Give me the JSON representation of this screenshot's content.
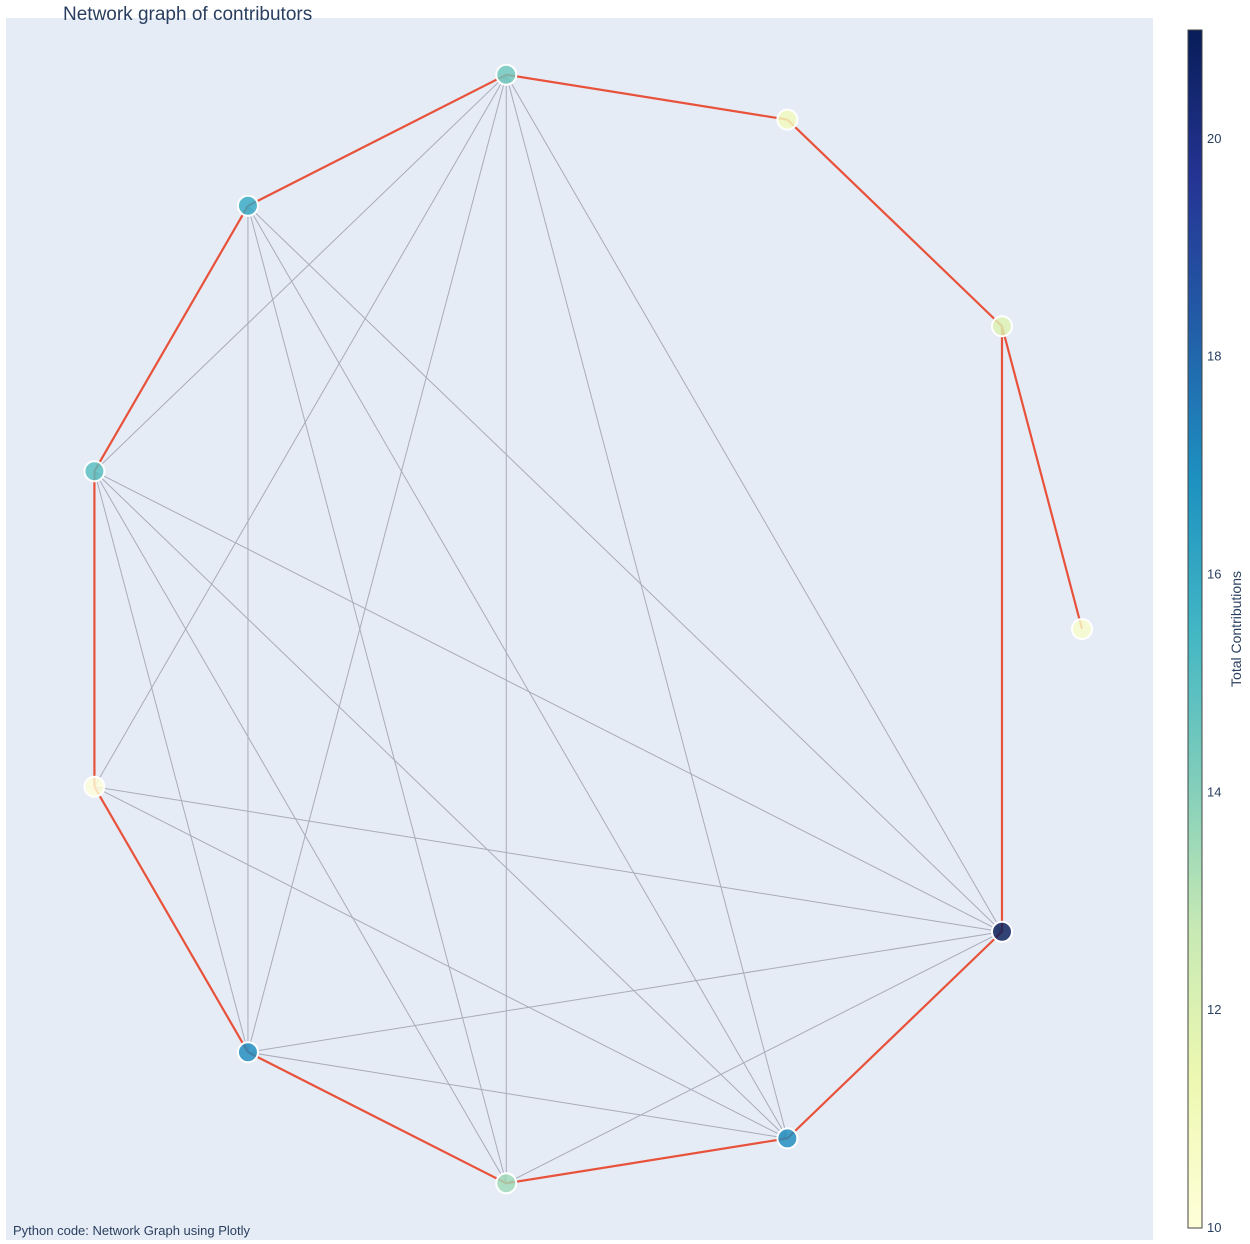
{
  "chart_data": {
    "type": "network",
    "title": "Network graph of contributors",
    "footnote": "Python code: Network Graph using Plotly",
    "layout": "circular",
    "node_count": 11,
    "nodes": [
      {
        "id": 0,
        "value": 10.5
      },
      {
        "id": 1,
        "value": 12
      },
      {
        "id": 2,
        "value": 11
      },
      {
        "id": 3,
        "value": 14.5
      },
      {
        "id": 4,
        "value": 16
      },
      {
        "id": 5,
        "value": 15
      },
      {
        "id": 6,
        "value": 10
      },
      {
        "id": 7,
        "value": 17
      },
      {
        "id": 8,
        "value": 13.5
      },
      {
        "id": 9,
        "value": 17
      },
      {
        "id": 10,
        "value": 21
      }
    ],
    "ring_edges": [
      [
        0,
        1
      ],
      [
        1,
        2
      ],
      [
        2,
        3
      ],
      [
        3,
        4
      ],
      [
        4,
        5
      ],
      [
        5,
        6
      ],
      [
        6,
        7
      ],
      [
        7,
        8
      ],
      [
        8,
        9
      ],
      [
        9,
        10
      ],
      [
        10,
        1
      ]
    ],
    "ring_edge_color": "#e8513a",
    "edges": [
      [
        4,
        9
      ],
      [
        4,
        8
      ],
      [
        4,
        10
      ],
      [
        4,
        7
      ],
      [
        3,
        5
      ],
      [
        3,
        6
      ],
      [
        3,
        7
      ],
      [
        3,
        9
      ],
      [
        3,
        8
      ],
      [
        3,
        10
      ],
      [
        5,
        6
      ],
      [
        5,
        7
      ],
      [
        5,
        8
      ],
      [
        5,
        9
      ],
      [
        5,
        10
      ],
      [
        6,
        10
      ],
      [
        6,
        9
      ],
      [
        7,
        10
      ],
      [
        7,
        9
      ],
      [
        8,
        10
      ]
    ],
    "edge_color": "#a9abba",
    "colorbar": {
      "title": "Total Contributions",
      "min": 10,
      "max": 21,
      "ticks": [
        10,
        12,
        14,
        16,
        18,
        20
      ],
      "colorscale": [
        "#ffffd9",
        "#edf8b1",
        "#c7e9b4",
        "#7fcdbb",
        "#41b6c4",
        "#1d91c0",
        "#225ea8",
        "#253494",
        "#081d58"
      ]
    },
    "plot_background": "#e5ecf6"
  }
}
